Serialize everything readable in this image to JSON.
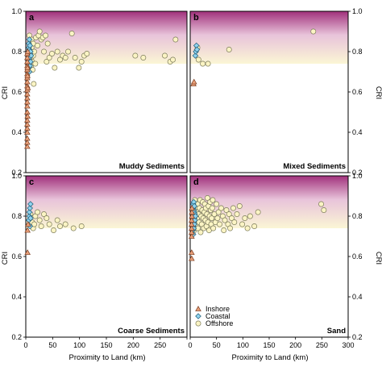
{
  "figure": {
    "ylabel": "CRI",
    "xlabel": "Proximity to Land (km)",
    "xlim": [
      0,
      300
    ],
    "ylim": [
      0.2,
      1.0
    ],
    "xticks": [
      0,
      50,
      100,
      150,
      200,
      250,
      300
    ],
    "yticks": [
      "0.2",
      "0.4",
      "0.6",
      "0.8",
      "1.0"
    ],
    "gradient_band": {
      "from": 0.74,
      "to": 1.0,
      "top_color": "#a1307c",
      "mid_color": "#e8c3da",
      "bottom_color": "#fbf6d5"
    }
  },
  "legend": [
    {
      "name": "Inshore",
      "marker": "triangle",
      "fill": "#e9a07a",
      "stroke": "#7a3b1e"
    },
    {
      "name": "Coastal",
      "marker": "diamond",
      "fill": "#8fd3ee",
      "stroke": "#1f5b77"
    },
    {
      "name": "Offshore",
      "marker": "circle",
      "fill": "#fbf4c4",
      "stroke": "#7b7b5a"
    }
  ],
  "chart_data": [
    {
      "type": "scatter",
      "panel": "a",
      "title": "Muddy Sediments",
      "xlabel": "",
      "ylabel": "CRI",
      "xlim": [
        0,
        300
      ],
      "ylim": [
        0.2,
        1.0
      ],
      "series": [
        {
          "name": "Inshore",
          "points": [
            [
              0.5,
              0.33
            ],
            [
              0.5,
              0.35
            ],
            [
              0.5,
              0.37
            ],
            [
              0.5,
              0.4
            ],
            [
              0.5,
              0.42
            ],
            [
              0.5,
              0.44
            ],
            [
              0.5,
              0.46
            ],
            [
              0.5,
              0.5
            ],
            [
              0.5,
              0.53
            ],
            [
              0.5,
              0.55
            ],
            [
              0.5,
              0.57
            ],
            [
              0.5,
              0.59
            ],
            [
              0.5,
              0.61
            ],
            [
              0.5,
              0.63
            ],
            [
              0.5,
              0.65
            ],
            [
              0.5,
              0.67
            ],
            [
              0.5,
              0.69
            ],
            [
              0.5,
              0.71
            ],
            [
              0.5,
              0.73
            ],
            [
              0.5,
              0.75
            ],
            [
              0.5,
              0.77
            ],
            [
              0.5,
              0.79
            ],
            [
              1.0,
              0.48
            ],
            [
              1.0,
              0.68
            ],
            [
              1.0,
              0.72
            ],
            [
              1.5,
              0.62
            ],
            [
              1.5,
              0.8
            ]
          ]
        },
        {
          "name": "Coastal",
          "points": [
            [
              2,
              0.72
            ],
            [
              2,
              0.74
            ],
            [
              2,
              0.76
            ],
            [
              2,
              0.78
            ],
            [
              2,
              0.8
            ],
            [
              2,
              0.82
            ],
            [
              2,
              0.84
            ],
            [
              3,
              0.7
            ],
            [
              3,
              0.77
            ],
            [
              3,
              0.81
            ],
            [
              3,
              0.86
            ],
            [
              4,
              0.73
            ],
            [
              4,
              0.79
            ],
            [
              4,
              0.83
            ],
            [
              5,
              0.75
            ],
            [
              5,
              0.8
            ],
            [
              6,
              0.78
            ]
          ]
        },
        {
          "name": "Offshore",
          "points": [
            [
              3,
              0.88
            ],
            [
              4,
              0.85
            ],
            [
              5,
              0.83
            ],
            [
              5,
              0.8
            ],
            [
              6,
              0.77
            ],
            [
              6,
              0.73
            ],
            [
              7,
              0.82
            ],
            [
              7,
              0.86
            ],
            [
              8,
              0.79
            ],
            [
              8,
              0.75
            ],
            [
              9,
              0.71
            ],
            [
              10,
              0.84
            ],
            [
              10,
              0.78
            ],
            [
              11,
              0.64
            ],
            [
              12,
              0.8
            ],
            [
              14,
              0.74
            ],
            [
              15,
              0.87
            ],
            [
              18,
              0.83
            ],
            [
              20,
              0.88
            ],
            [
              22,
              0.9
            ],
            [
              25,
              0.86
            ],
            [
              28,
              0.87
            ],
            [
              30,
              0.8
            ],
            [
              33,
              0.88
            ],
            [
              35,
              0.75
            ],
            [
              37,
              0.84
            ],
            [
              40,
              0.77
            ],
            [
              45,
              0.79
            ],
            [
              50,
              0.72
            ],
            [
              55,
              0.8
            ],
            [
              60,
              0.76
            ],
            [
              65,
              0.78
            ],
            [
              70,
              0.77
            ],
            [
              75,
              0.8
            ],
            [
              82,
              0.89
            ],
            [
              88,
              0.77
            ],
            [
              95,
              0.72
            ],
            [
              100,
              0.75
            ],
            [
              105,
              0.78
            ],
            [
              110,
              0.79
            ],
            [
              200,
              0.78
            ],
            [
              215,
              0.77
            ],
            [
              255,
              0.78
            ],
            [
              265,
              0.75
            ],
            [
              270,
              0.76
            ],
            [
              275,
              0.86
            ]
          ]
        }
      ]
    },
    {
      "type": "scatter",
      "panel": "b",
      "title": "Mixed Sediments",
      "xlabel": "",
      "ylabel": "CRI",
      "xlim": [
        0,
        300
      ],
      "ylim": [
        0.2,
        1.0
      ],
      "series": [
        {
          "name": "Inshore",
          "points": [
            [
              4,
              0.64
            ],
            [
              5,
              0.65
            ]
          ]
        },
        {
          "name": "Coastal",
          "points": [
            [
              6,
              0.78
            ],
            [
              7,
              0.8
            ],
            [
              8,
              0.83
            ],
            [
              9,
              0.81
            ]
          ]
        },
        {
          "name": "Offshore",
          "points": [
            [
              10,
              0.82
            ],
            [
              12,
              0.76
            ],
            [
              20,
              0.74
            ],
            [
              30,
              0.74
            ],
            [
              70,
              0.81
            ],
            [
              230,
              0.9
            ]
          ]
        }
      ]
    },
    {
      "type": "scatter",
      "panel": "c",
      "title": "Coarse Sediments",
      "xlabel": "",
      "ylabel": "CRI",
      "xlim": [
        0,
        300
      ],
      "ylim": [
        0.2,
        1.0
      ],
      "series": [
        {
          "name": "Inshore",
          "points": [
            [
              1,
              0.62
            ],
            [
              1,
              0.73
            ],
            [
              2,
              0.76
            ]
          ]
        },
        {
          "name": "Coastal",
          "points": [
            [
              2,
              0.78
            ],
            [
              3,
              0.8
            ],
            [
              3,
              0.82
            ],
            [
              4,
              0.84
            ],
            [
              5,
              0.86
            ],
            [
              4,
              0.75
            ],
            [
              5,
              0.79
            ]
          ]
        },
        {
          "name": "Offshore",
          "points": [
            [
              5,
              0.81
            ],
            [
              8,
              0.77
            ],
            [
              10,
              0.74
            ],
            [
              12,
              0.76
            ],
            [
              14,
              0.8
            ],
            [
              18,
              0.82
            ],
            [
              22,
              0.78
            ],
            [
              25,
              0.75
            ],
            [
              30,
              0.81
            ],
            [
              35,
              0.79
            ],
            [
              40,
              0.76
            ],
            [
              48,
              0.73
            ],
            [
              55,
              0.78
            ],
            [
              60,
              0.75
            ],
            [
              70,
              0.76
            ],
            [
              85,
              0.74
            ],
            [
              100,
              0.75
            ]
          ]
        }
      ]
    },
    {
      "type": "scatter",
      "panel": "d",
      "title": "Sand",
      "xlabel": "Proximity to Land (km)",
      "ylabel": "CRI",
      "xlim": [
        0,
        300
      ],
      "ylim": [
        0.2,
        1.0
      ],
      "series": [
        {
          "name": "Inshore",
          "points": [
            [
              0.5,
              0.59
            ],
            [
              0.5,
              0.62
            ],
            [
              0.5,
              0.7
            ],
            [
              0.5,
              0.72
            ],
            [
              0.5,
              0.74
            ],
            [
              0.5,
              0.76
            ],
            [
              0.5,
              0.78
            ],
            [
              1,
              0.8
            ],
            [
              1,
              0.82
            ],
            [
              1,
              0.84
            ]
          ]
        },
        {
          "name": "Coastal",
          "points": [
            [
              1.5,
              0.73
            ],
            [
              1.5,
              0.76
            ],
            [
              1.5,
              0.79
            ],
            [
              1.5,
              0.82
            ],
            [
              2,
              0.71
            ],
            [
              2,
              0.75
            ],
            [
              2,
              0.78
            ],
            [
              2,
              0.81
            ],
            [
              2,
              0.84
            ],
            [
              2,
              0.86
            ],
            [
              3,
              0.74
            ],
            [
              3,
              0.77
            ],
            [
              3,
              0.8
            ],
            [
              3,
              0.83
            ],
            [
              3,
              0.87
            ],
            [
              4,
              0.76
            ],
            [
              4,
              0.79
            ],
            [
              4,
              0.82
            ],
            [
              4,
              0.85
            ],
            [
              5,
              0.78
            ],
            [
              5,
              0.81
            ],
            [
              6,
              0.8
            ]
          ]
        },
        {
          "name": "Offshore",
          "points": [
            [
              4,
              0.73
            ],
            [
              5,
              0.88
            ],
            [
              6,
              0.84
            ],
            [
              7,
              0.76
            ],
            [
              8,
              0.82
            ],
            [
              9,
              0.79
            ],
            [
              10,
              0.86
            ],
            [
              11,
              0.74
            ],
            [
              12,
              0.81
            ],
            [
              13,
              0.77
            ],
            [
              14,
              0.84
            ],
            [
              15,
              0.88
            ],
            [
              16,
              0.72
            ],
            [
              17,
              0.8
            ],
            [
              18,
              0.76
            ],
            [
              19,
              0.83
            ],
            [
              20,
              0.87
            ],
            [
              21,
              0.79
            ],
            [
              22,
              0.74
            ],
            [
              23,
              0.82
            ],
            [
              24,
              0.86
            ],
            [
              25,
              0.78
            ],
            [
              26,
              0.84
            ],
            [
              27,
              0.75
            ],
            [
              28,
              0.81
            ],
            [
              29,
              0.89
            ],
            [
              30,
              0.77
            ],
            [
              31,
              0.85
            ],
            [
              32,
              0.73
            ],
            [
              33,
              0.8
            ],
            [
              34,
              0.87
            ],
            [
              35,
              0.83
            ],
            [
              36,
              0.76
            ],
            [
              37,
              0.79
            ],
            [
              38,
              0.84
            ],
            [
              39,
              0.88
            ],
            [
              40,
              0.74
            ],
            [
              42,
              0.81
            ],
            [
              44,
              0.77
            ],
            [
              46,
              0.86
            ],
            [
              48,
              0.79
            ],
            [
              50,
              0.82
            ],
            [
              52,
              0.76
            ],
            [
              55,
              0.84
            ],
            [
              58,
              0.8
            ],
            [
              60,
              0.73
            ],
            [
              62,
              0.78
            ],
            [
              65,
              0.83
            ],
            [
              68,
              0.76
            ],
            [
              70,
              0.81
            ],
            [
              72,
              0.74
            ],
            [
              75,
              0.79
            ],
            [
              78,
              0.84
            ],
            [
              80,
              0.77
            ],
            [
              85,
              0.81
            ],
            [
              90,
              0.85
            ],
            [
              95,
              0.76
            ],
            [
              100,
              0.79
            ],
            [
              105,
              0.74
            ],
            [
              110,
              0.8
            ],
            [
              118,
              0.75
            ],
            [
              125,
              0.82
            ],
            [
              245,
              0.86
            ],
            [
              250,
              0.83
            ]
          ]
        }
      ]
    }
  ]
}
